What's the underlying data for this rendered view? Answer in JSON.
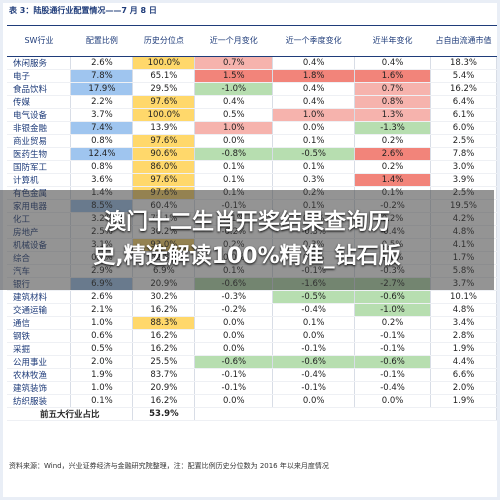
{
  "caption": "表 3：陆股通行业配置情况——7 月 8 日",
  "headers": [
    "SW行业",
    "配置比例",
    "历史分位点",
    "近一个月变化",
    "近一个季度变化",
    "近半年变化",
    "占自由流通市值"
  ],
  "rows": [
    {
      "name": "休闲服务",
      "ratio": "2.6%",
      "pct": "100.0%",
      "m1": "0.7%",
      "q1": "0.4%",
      "h1": "0.4%",
      "cap": "18.3%"
    },
    {
      "name": "电子",
      "ratio": "7.8%",
      "pct": "65.1%",
      "m1": "1.5%",
      "q1": "1.8%",
      "h1": "1.6%",
      "cap": "5.4%"
    },
    {
      "name": "食品饮料",
      "ratio": "17.9%",
      "pct": "29.5%",
      "m1": "-1.0%",
      "q1": "0.4%",
      "h1": "0.7%",
      "cap": "16.2%"
    },
    {
      "name": "传媒",
      "ratio": "2.2%",
      "pct": "97.6%",
      "m1": "0.4%",
      "q1": "0.4%",
      "h1": "0.8%",
      "cap": "6.4%"
    },
    {
      "name": "电气设备",
      "ratio": "3.7%",
      "pct": "100.0%",
      "m1": "0.5%",
      "q1": "1.0%",
      "h1": "1.3%",
      "cap": "6.1%"
    },
    {
      "name": "非银金融",
      "ratio": "7.4%",
      "pct": "13.9%",
      "m1": "1.0%",
      "q1": "0.0%",
      "h1": "-1.3%",
      "cap": "6.0%"
    },
    {
      "name": "商业贸易",
      "ratio": "0.8%",
      "pct": "97.6%",
      "m1": "0.0%",
      "q1": "0.1%",
      "h1": "0.2%",
      "cap": "2.5%"
    },
    {
      "name": "医药生物",
      "ratio": "12.4%",
      "pct": "90.6%",
      "m1": "-0.8%",
      "q1": "-0.5%",
      "h1": "2.6%",
      "cap": "7.8%"
    },
    {
      "name": "国防军工",
      "ratio": "0.8%",
      "pct": "86.0%",
      "m1": "0.1%",
      "q1": "0.1%",
      "h1": "0.2%",
      "cap": "3.0%"
    },
    {
      "name": "计算机",
      "ratio": "3.6%",
      "pct": "97.6%",
      "m1": "0.1%",
      "q1": "0.3%",
      "h1": "1.4%",
      "cap": "3.9%"
    },
    {
      "name": "有色金属",
      "ratio": "1.4%",
      "pct": "97.6%",
      "m1": "0.1%",
      "q1": "0.2%",
      "h1": "0.1%",
      "cap": "2.5%"
    },
    {
      "name": "家用电器",
      "ratio": "8.5%",
      "pct": "60.4%",
      "m1": "-0.1%",
      "q1": "0.1%",
      "h1": "-0.2%",
      "cap": "19.5%"
    },
    {
      "name": "化工",
      "ratio": "3.2%",
      "pct": "72.1%",
      "m1": "0.1%",
      "q1": "0.2%",
      "h1": "0.2%",
      "cap": "4.2%"
    },
    {
      "name": "房地产",
      "ratio": "2.5%",
      "pct": "30.2%",
      "m1": "-0.2%",
      "q1": "-0.3%",
      "h1": "-0.4%",
      "cap": "4.8%"
    },
    {
      "name": "机械设备",
      "ratio": "3.1%",
      "pct": "93.0%",
      "m1": "0.2%",
      "q1": "0.3%",
      "h1": "0.5%",
      "cap": "4.1%"
    },
    {
      "name": "综合",
      "ratio": "0.2%",
      "pct": "62.8%",
      "m1": "0.0%",
      "q1": "0.0%",
      "h1": "0.0%",
      "cap": "1.7%"
    },
    {
      "name": "汽车",
      "ratio": "2.9%",
      "pct": "6.9%",
      "m1": "0.1%",
      "q1": "-0.1%",
      "h1": "-0.3%",
      "cap": "5.8%"
    },
    {
      "name": "银行",
      "ratio": "6.9%",
      "pct": "20.9%",
      "m1": "-0.6%",
      "q1": "-1.6%",
      "h1": "-2.7%",
      "cap": "3.7%"
    },
    {
      "name": "建筑材料",
      "ratio": "2.6%",
      "pct": "30.2%",
      "m1": "-0.3%",
      "q1": "-0.5%",
      "h1": "-0.6%",
      "cap": "10.1%"
    },
    {
      "name": "交通运输",
      "ratio": "2.1%",
      "pct": "16.2%",
      "m1": "-0.2%",
      "q1": "-0.4%",
      "h1": "-1.0%",
      "cap": "4.8%"
    },
    {
      "name": "通信",
      "ratio": "1.0%",
      "pct": "88.3%",
      "m1": "0.0%",
      "q1": "0.1%",
      "h1": "0.2%",
      "cap": "3.4%"
    },
    {
      "name": "钢铁",
      "ratio": "0.6%",
      "pct": "16.2%",
      "m1": "0.0%",
      "q1": "0.0%",
      "h1": "-0.1%",
      "cap": "2.8%"
    },
    {
      "name": "采掘",
      "ratio": "0.5%",
      "pct": "16.2%",
      "m1": "0.0%",
      "q1": "-0.1%",
      "h1": "-0.1%",
      "cap": "1.9%"
    },
    {
      "name": "公用事业",
      "ratio": "2.0%",
      "pct": "25.5%",
      "m1": "-0.6%",
      "q1": "-0.6%",
      "h1": "-0.6%",
      "cap": "4.4%"
    },
    {
      "name": "农林牧渔",
      "ratio": "1.9%",
      "pct": "83.7%",
      "m1": "-0.1%",
      "q1": "-0.4%",
      "h1": "-0.1%",
      "cap": "6.6%"
    },
    {
      "name": "建筑装饰",
      "ratio": "1.0%",
      "pct": "20.9%",
      "m1": "-0.1%",
      "q1": "-0.1%",
      "h1": "-0.4%",
      "cap": "2.0%"
    },
    {
      "name": "纺织服装",
      "ratio": "0.1%",
      "pct": "16.2%",
      "m1": "0.0%",
      "q1": "0.0%",
      "h1": "0.0%",
      "cap": "1.9%"
    }
  ],
  "summary_label": "前五大行业占比",
  "summary_value": "53.9%",
  "footer": "资料来源：Wind，兴业证券经济与金融研究院整理，注：配置比例历史分位数为 2016 年以来月度情况",
  "banner_line1": "澳门十二生肖开奖结果查询历",
  "banner_line2": "史,精选解读100%精准_钻石版",
  "colors": {
    "heading": "#1f3c7a",
    "blue": "#9fc5ef",
    "yellow": "#ffd86b",
    "red": "#f6b3ad",
    "green": "#b7deb0"
  }
}
